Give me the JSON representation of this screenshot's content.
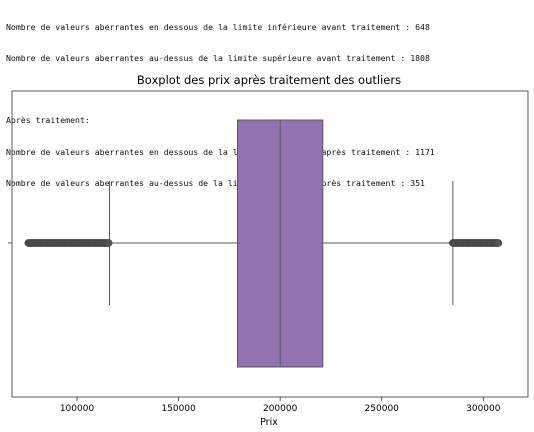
{
  "console": {
    "lines": [
      "Nombre de valeurs aberrantes en dessous de la limite inférieure avant traitement : 648",
      "Nombre de valeurs aberrantes au-dessus de la limite supérieure avant traitement : 1808",
      "",
      "Après traitement:",
      "Nombre de valeurs aberrantes en dessous de la limite inférieure après traitement : 1171",
      "Nombre de valeurs aberrantes au-dessus de la limite supérieure après traitement : 351"
    ]
  },
  "chart_data": {
    "type": "boxplot",
    "title": "Boxplot des prix après traitement des outliers",
    "xlabel": "Prix",
    "ylabel": "",
    "xlim": [
      68000,
      322000
    ],
    "xticks": [
      100000,
      150000,
      200000,
      250000,
      300000
    ],
    "xtick_labels": [
      "100000",
      "150000",
      "200000",
      "250000",
      "300000"
    ],
    "box": {
      "whisker_low": 116000,
      "q1": 179000,
      "median": 200000,
      "q3": 221000,
      "whisker_high": 285000
    },
    "outliers_low_range": [
      76000,
      116000
    ],
    "outliers_high_range": [
      285000,
      308000
    ],
    "colors": {
      "box_fill": "#9372b2",
      "lines": "#5a5a5a",
      "outlier": "#555555"
    }
  }
}
